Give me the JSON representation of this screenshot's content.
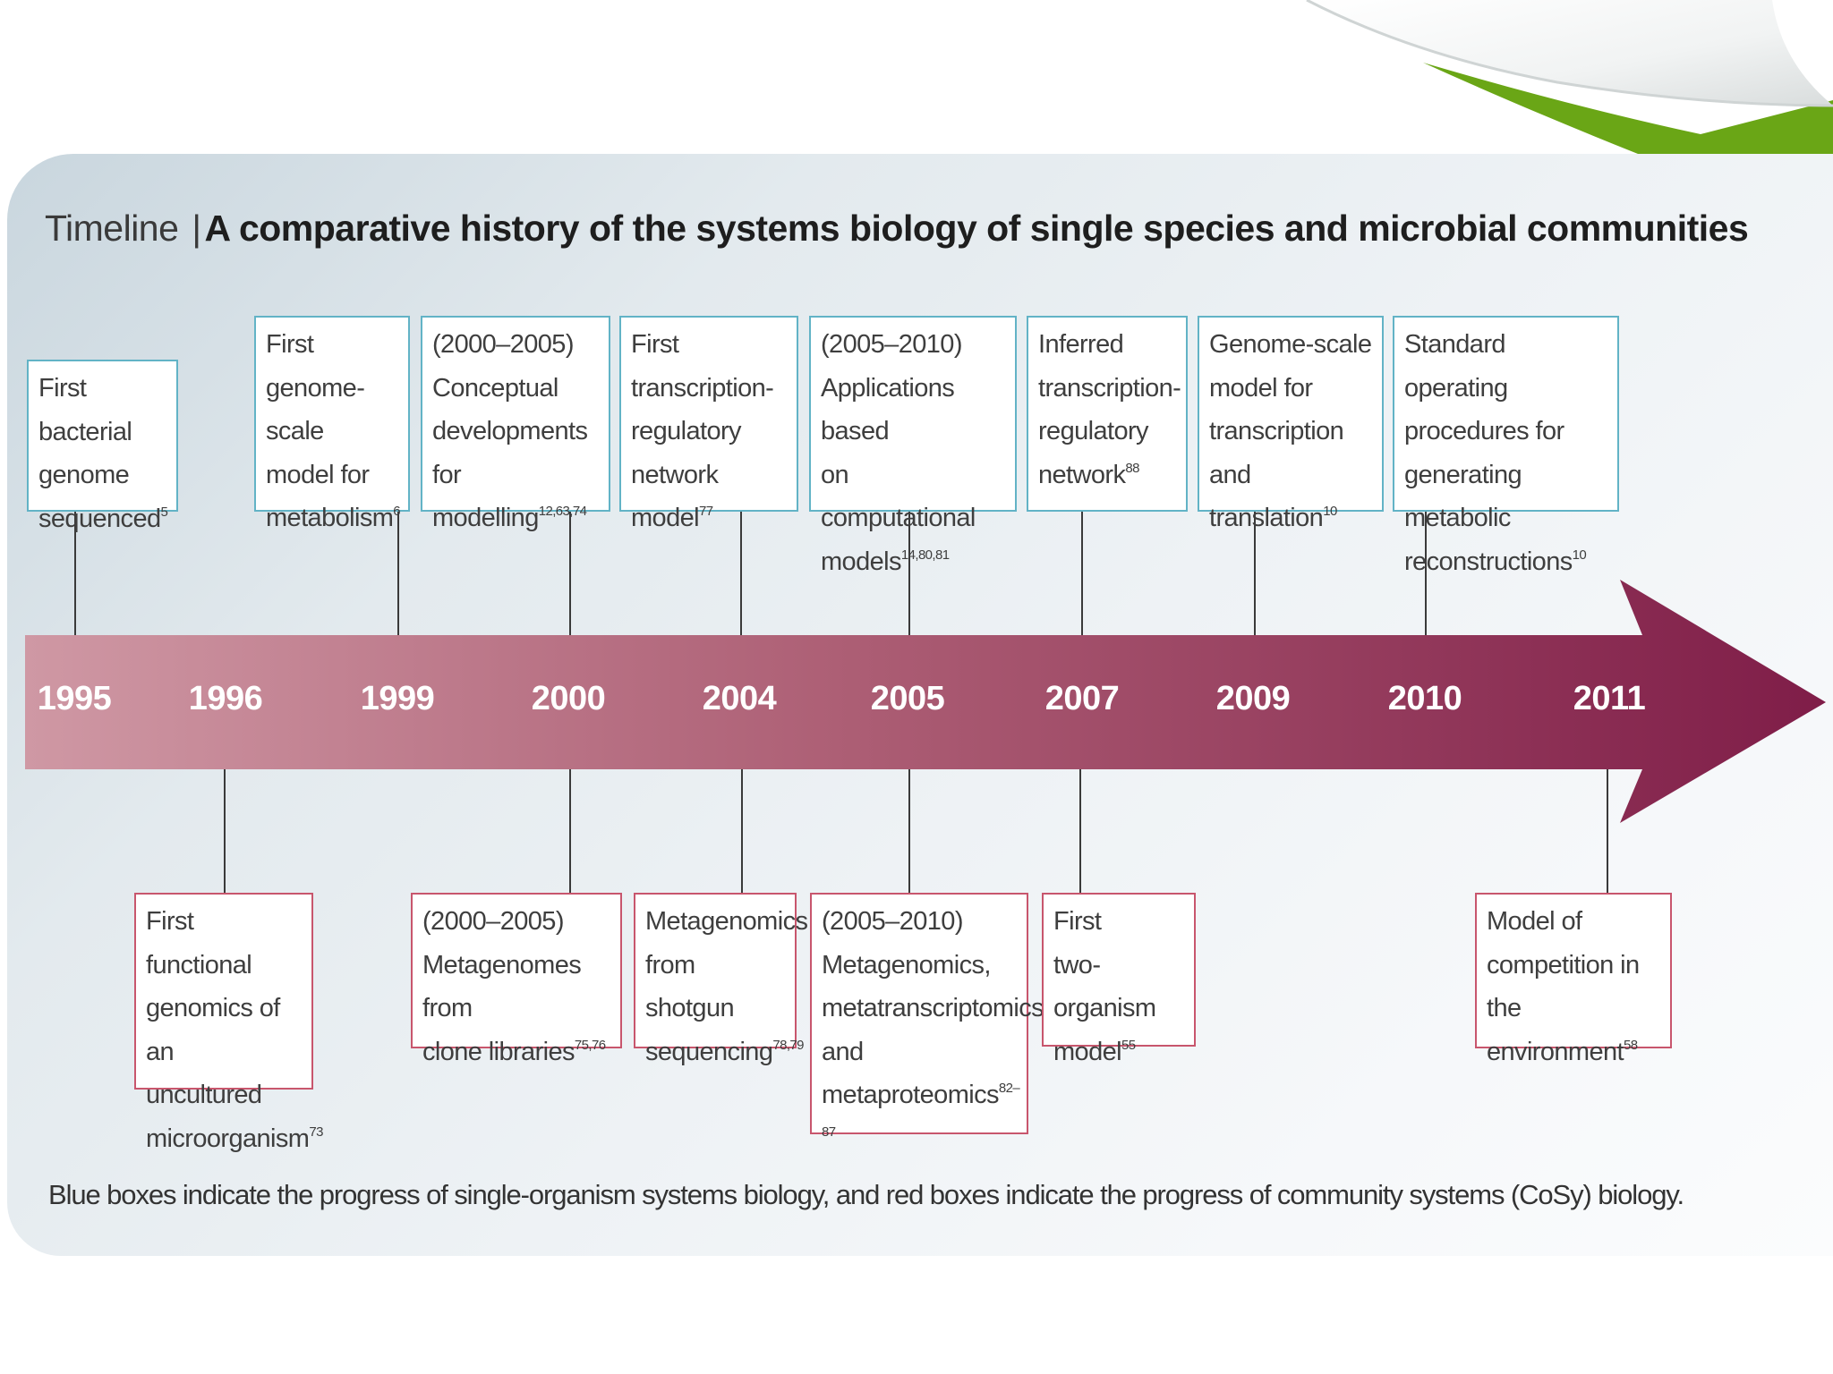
{
  "title": {
    "label": "Timeline",
    "separator": "|",
    "main": "A comparative history of the systems biology of single species and microbial communities"
  },
  "years": [
    "1995",
    "1996",
    "1999",
    "2000",
    "2004",
    "2005",
    "2007",
    "2009",
    "2010",
    "2011"
  ],
  "blue_boxes": [
    {
      "year": "1995",
      "lines": [
        "First bacterial",
        "genome",
        "sequenced"
      ],
      "ref": "5"
    },
    {
      "year": "1999",
      "lines": [
        "First",
        "genome-scale",
        "model for",
        "metabolism"
      ],
      "ref": "6"
    },
    {
      "year": "2000",
      "lines": [
        "(2000–2005)",
        "Conceptual",
        "developments for",
        "modelling"
      ],
      "ref": "12,63,74"
    },
    {
      "year": "2004",
      "lines": [
        "First",
        "transcription-",
        "regulatory",
        "network model"
      ],
      "ref": "77"
    },
    {
      "year": "2005",
      "lines": [
        "(2005–2010)",
        "Applications based",
        "on computational",
        "models"
      ],
      "ref": "14,80,81"
    },
    {
      "year": "2007",
      "lines": [
        "Inferred",
        "transcription-",
        "regulatory",
        "network"
      ],
      "ref": "88"
    },
    {
      "year": "2009",
      "lines": [
        "Genome-scale",
        "model for",
        "transcription and",
        "translation"
      ],
      "ref": "10"
    },
    {
      "year": "2010",
      "lines": [
        "Standard operating",
        "procedures for",
        "generating metabolic",
        "reconstructions"
      ],
      "ref": "10"
    }
  ],
  "red_boxes": [
    {
      "year": "1996",
      "lines": [
        "First functional",
        "genomics of an",
        "uncultured",
        "microorganism"
      ],
      "ref": "73"
    },
    {
      "year": "2000",
      "lines": [
        "(2000–2005)",
        "Metagenomes from",
        "clone libraries"
      ],
      "ref": "75,76"
    },
    {
      "year": "2004",
      "lines": [
        "Metagenomics",
        "from shotgun",
        "sequencing"
      ],
      "ref": "78,79"
    },
    {
      "year": "2005",
      "lines": [
        "(2005–2010)",
        "Metagenomics,",
        "metatranscriptomics",
        "and",
        "metaproteomics"
      ],
      "ref": "82–87"
    },
    {
      "year": "2007",
      "lines": [
        "First",
        "two-organism",
        "model"
      ],
      "ref": "55"
    },
    {
      "year": "2011",
      "lines": [
        "Model of",
        "competition in the",
        "environment"
      ],
      "ref": "58"
    }
  ],
  "caption": "Blue boxes indicate the progress of single-organism systems biology, and red boxes indicate the progress of community systems (CoSy) biology.",
  "colors": {
    "blue_border": "#62b3c6",
    "red_border": "#c8566d",
    "arrow_start": "#cf98a4",
    "arrow_end": "#7f1d48",
    "decor_green": "#6aa616"
  }
}
